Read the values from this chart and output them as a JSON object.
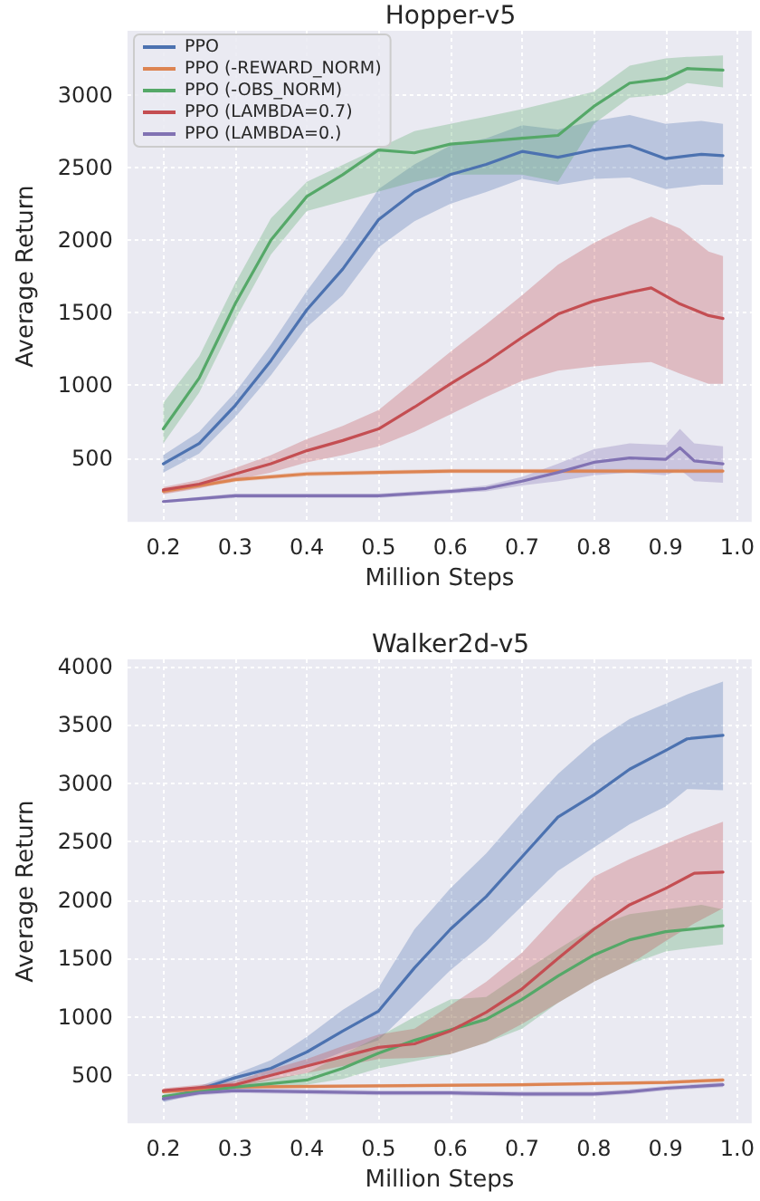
{
  "chart_data": [
    {
      "type": "line",
      "title": "Hopper-v5",
      "xlabel": "Million Steps",
      "ylabel": "Average Return",
      "xlim": [
        0.15,
        1.02
      ],
      "ylim": [
        60,
        3440
      ],
      "xticks": [
        0.2,
        0.3,
        0.4,
        0.5,
        0.6,
        0.7,
        0.8,
        0.9,
        {
          "value": 1,
          "label": "1.0"
        }
      ],
      "yticks": [
        500,
        1000,
        1500,
        2000,
        2500,
        3000
      ],
      "grid": true,
      "legend": "top left",
      "series": [
        {
          "name": "PPO",
          "color": "#4c72b0",
          "x": [
            0.2,
            0.25,
            0.3,
            0.35,
            0.4,
            0.45,
            0.5,
            0.55,
            0.6,
            0.65,
            0.7,
            0.75,
            0.8,
            0.85,
            0.9,
            0.95,
            0.98
          ],
          "values": [
            460,
            600,
            860,
            1170,
            1520,
            1800,
            2140,
            2330,
            2450,
            2520,
            2610,
            2570,
            2620,
            2650,
            2560,
            2590,
            2580
          ],
          "lower": [
            400,
            530,
            780,
            1070,
            1400,
            1620,
            1950,
            2130,
            2250,
            2330,
            2420,
            2380,
            2420,
            2430,
            2350,
            2380,
            2380
          ],
          "upper": [
            520,
            680,
            950,
            1280,
            1650,
            1980,
            2350,
            2520,
            2650,
            2700,
            2790,
            2760,
            2820,
            2860,
            2800,
            2820,
            2800
          ]
        },
        {
          "name": "PPO (-REWARD_NORM)",
          "color": "#dd8452",
          "x": [
            0.2,
            0.3,
            0.4,
            0.5,
            0.6,
            0.7,
            0.8,
            0.9,
            0.98
          ],
          "values": [
            270,
            350,
            390,
            400,
            410,
            410,
            410,
            410,
            410
          ],
          "lower": [
            255,
            335,
            375,
            385,
            395,
            395,
            395,
            395,
            395
          ],
          "upper": [
            285,
            365,
            405,
            415,
            425,
            425,
            425,
            425,
            425
          ]
        },
        {
          "name": "PPO (-OBS_NORM)",
          "color": "#55a868",
          "x": [
            0.2,
            0.25,
            0.3,
            0.35,
            0.4,
            0.45,
            0.5,
            0.55,
            0.6,
            0.65,
            0.7,
            0.75,
            0.8,
            0.85,
            0.9,
            0.93,
            0.98
          ],
          "values": [
            700,
            1050,
            1560,
            2000,
            2300,
            2450,
            2620,
            2600,
            2660,
            2680,
            2700,
            2720,
            2920,
            3080,
            3110,
            3180,
            3170
          ],
          "lower": [
            600,
            950,
            1450,
            1900,
            2200,
            null,
            null,
            2400,
            2450,
            2450,
            2450,
            2400,
            2800,
            2980,
            3000,
            3080,
            3050
          ],
          "upper": [
            880,
            1200,
            1700,
            2150,
            2400,
            null,
            null,
            2750,
            2800,
            2850,
            2900,
            2960,
            3020,
            3200,
            3250,
            3260,
            3270
          ]
        },
        {
          "name": "PPO (LAMBDA=0.7)",
          "color": "#c44e52",
          "x": [
            0.2,
            0.25,
            0.3,
            0.35,
            0.4,
            0.45,
            0.5,
            0.55,
            0.6,
            0.65,
            0.7,
            0.75,
            0.8,
            0.85,
            0.88,
            0.92,
            0.96,
            0.98
          ],
          "values": [
            280,
            320,
            390,
            460,
            550,
            620,
            700,
            850,
            1010,
            1160,
            1330,
            1490,
            1580,
            1640,
            1670,
            1560,
            1480,
            1460
          ],
          "lower": [
            250,
            290,
            350,
            400,
            470,
            520,
            580,
            680,
            800,
            920,
            1030,
            1100,
            1130,
            1150,
            1160,
            1080,
            1010,
            1010
          ],
          "upper": [
            300,
            350,
            430,
            520,
            630,
            720,
            830,
            1030,
            1230,
            1420,
            1620,
            1830,
            1980,
            2100,
            2160,
            2080,
            1920,
            1890
          ]
        },
        {
          "name": "PPO (LAMBDA=0.)",
          "color": "#8172b3",
          "x": [
            0.2,
            0.3,
            0.4,
            0.5,
            0.6,
            0.65,
            0.7,
            0.75,
            0.8,
            0.85,
            0.9,
            0.92,
            0.94,
            0.98
          ],
          "values": [
            200,
            240,
            240,
            240,
            270,
            290,
            340,
            400,
            470,
            500,
            490,
            570,
            480,
            460
          ],
          "lower": [
            190,
            225,
            225,
            225,
            255,
            270,
            310,
            340,
            380,
            400,
            380,
            420,
            340,
            330
          ],
          "upper": [
            210,
            255,
            255,
            255,
            285,
            310,
            370,
            460,
            560,
            600,
            590,
            700,
            600,
            580
          ]
        }
      ]
    },
    {
      "type": "line",
      "title": "Walker2d-v5",
      "xlabel": "Million Steps",
      "ylabel": "Average Return",
      "xlim": [
        0.15,
        1.02
      ],
      "ylim": [
        90,
        4060
      ],
      "xticks": [
        0.2,
        0.3,
        0.4,
        0.5,
        0.6,
        0.7,
        0.8,
        0.9,
        {
          "value": 1,
          "label": "1.0"
        }
      ],
      "yticks": [
        500,
        1000,
        1500,
        2000,
        2500,
        3000,
        3500,
        4000
      ],
      "grid": true,
      "series": [
        {
          "color": "#4c72b0",
          "x": [
            0.2,
            0.25,
            0.3,
            0.35,
            0.4,
            0.45,
            0.5,
            0.55,
            0.6,
            0.65,
            0.7,
            0.75,
            0.8,
            0.85,
            0.9,
            0.93,
            0.98
          ],
          "values": [
            300,
            380,
            480,
            560,
            700,
            880,
            1050,
            1420,
            1750,
            2030,
            2370,
            2710,
            2900,
            3120,
            3280,
            3380,
            3410
          ],
          "lower": [
            270,
            350,
            440,
            500,
            580,
            700,
            800,
            1100,
            1400,
            1650,
            1950,
            2250,
            2450,
            2650,
            2800,
            2950,
            2940
          ],
          "upper": [
            320,
            410,
            510,
            630,
            830,
            1060,
            1250,
            1750,
            2100,
            2400,
            2750,
            3080,
            3350,
            3550,
            3680,
            3760,
            3870
          ]
        },
        {
          "color": "#dd8452",
          "x": [
            0.2,
            0.3,
            0.5,
            0.7,
            0.8,
            0.9,
            0.98
          ],
          "values": [
            360,
            400,
            410,
            420,
            430,
            440,
            460
          ],
          "lower": [
            345,
            385,
            395,
            405,
            415,
            425,
            445
          ],
          "upper": [
            375,
            415,
            425,
            435,
            445,
            455,
            475
          ]
        },
        {
          "color": "#55a868",
          "x": [
            0.2,
            0.3,
            0.35,
            0.4,
            0.45,
            0.5,
            0.55,
            0.6,
            0.65,
            0.7,
            0.75,
            0.8,
            0.85,
            0.9,
            0.95,
            0.98
          ],
          "values": [
            320,
            400,
            430,
            460,
            560,
            690,
            800,
            890,
            980,
            1150,
            1350,
            1530,
            1660,
            1730,
            1760,
            1780
          ],
          "lower": [
            300,
            380,
            400,
            420,
            470,
            560,
            620,
            680,
            780,
            900,
            1120,
            1300,
            1450,
            1560,
            1600,
            1620
          ],
          "upper": [
            340,
            420,
            470,
            520,
            680,
            830,
            1000,
            1150,
            1170,
            1380,
            1580,
            1770,
            1880,
            1920,
            1960,
            1920
          ]
        },
        {
          "color": "#c44e52",
          "x": [
            0.2,
            0.3,
            0.35,
            0.4,
            0.45,
            0.5,
            0.55,
            0.6,
            0.65,
            0.7,
            0.75,
            0.8,
            0.85,
            0.9,
            0.94,
            0.98
          ],
          "values": [
            370,
            420,
            500,
            580,
            660,
            740,
            770,
            880,
            1040,
            1240,
            1500,
            1750,
            1960,
            2100,
            2230,
            2240
          ],
          "lower": [
            350,
            400,
            460,
            520,
            580,
            640,
            650,
            680,
            780,
            940,
            1120,
            1300,
            1450,
            1650,
            1800,
            1930
          ],
          "upper": [
            390,
            450,
            550,
            640,
            750,
            850,
            900,
            1100,
            1300,
            1550,
            1880,
            2200,
            2350,
            2480,
            2580,
            2670
          ]
        },
        {
          "color": "#8172b3",
          "x": [
            0.2,
            0.25,
            0.3,
            0.4,
            0.5,
            0.6,
            0.7,
            0.8,
            0.85,
            0.9,
            0.98
          ],
          "values": [
            300,
            350,
            370,
            360,
            350,
            350,
            340,
            340,
            360,
            390,
            420
          ],
          "lower": [
            280,
            330,
            350,
            340,
            330,
            330,
            320,
            320,
            340,
            370,
            400
          ],
          "upper": [
            320,
            370,
            390,
            380,
            370,
            370,
            360,
            360,
            380,
            410,
            440
          ]
        }
      ]
    }
  ]
}
